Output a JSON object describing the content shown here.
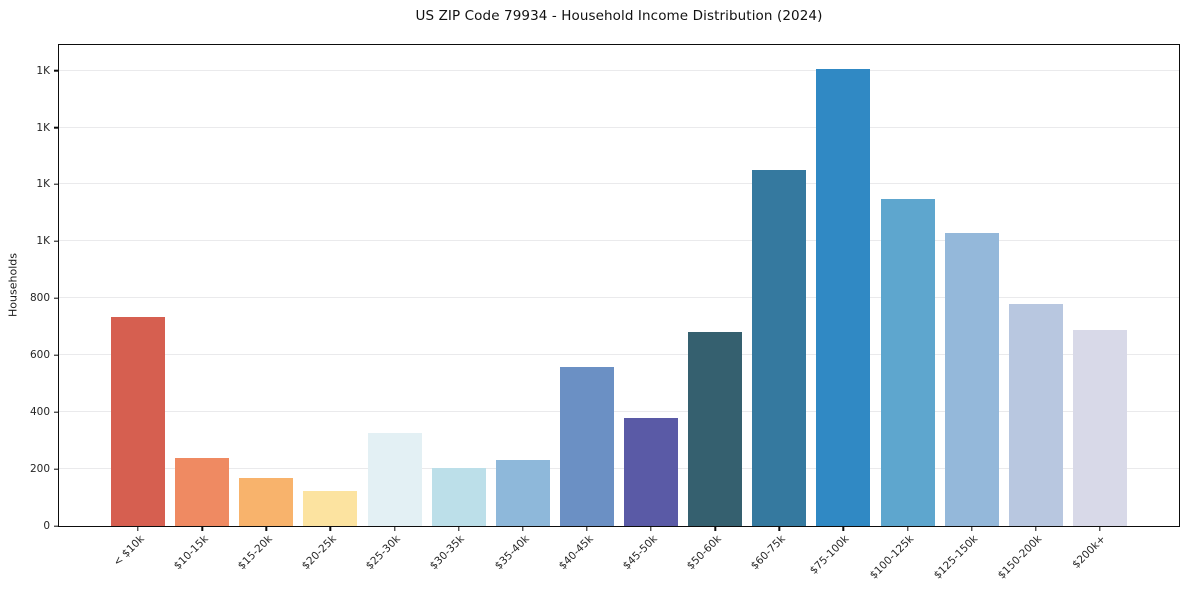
{
  "chart_data": {
    "type": "bar",
    "title": "US ZIP Code 79934 - Household Income Distribution (2024)",
    "xlabel": "",
    "ylabel": "Households",
    "categories": [
      "< $10k",
      "$10-15k",
      "$15-20k",
      "$20-25k",
      "$25-30k",
      "$30-35k",
      "$35-40k",
      "$40-45k",
      "$45-50k",
      "$50-60k",
      "$60-75k",
      "$75-100k",
      "$100-125k",
      "$125-150k",
      "$150-200k",
      "$200k+"
    ],
    "values": [
      735,
      240,
      170,
      122,
      326,
      203,
      232,
      560,
      378,
      680,
      1250,
      1605,
      1148,
      1030,
      781,
      688
    ],
    "bar_colors": [
      "#d65f50",
      "#ef8a62",
      "#f8b36c",
      "#fce3a0",
      "#e3f0f4",
      "#bcdfe9",
      "#8eb8da",
      "#6b90c4",
      "#5a5aa6",
      "#35606f",
      "#35799f",
      "#3089c4",
      "#5ea6ce",
      "#94b8da",
      "#b8c7e0",
      "#d8d9e8"
    ],
    "ylim": [
      0,
      1690
    ],
    "yticks": [
      {
        "value": 0,
        "label": "0"
      },
      {
        "value": 200,
        "label": "200"
      },
      {
        "value": 400,
        "label": "400"
      },
      {
        "value": 600,
        "label": "600"
      },
      {
        "value": 800,
        "label": "800"
      },
      {
        "value": 1000,
        "label": "1K"
      },
      {
        "value": 1200,
        "label": "1K"
      },
      {
        "value": 1400,
        "label": "1K"
      },
      {
        "value": 1600,
        "label": "1K"
      }
    ],
    "grid": "horizontal",
    "legend": null,
    "background_color": "#ffffff",
    "gridline_color": "#eaeaec"
  }
}
